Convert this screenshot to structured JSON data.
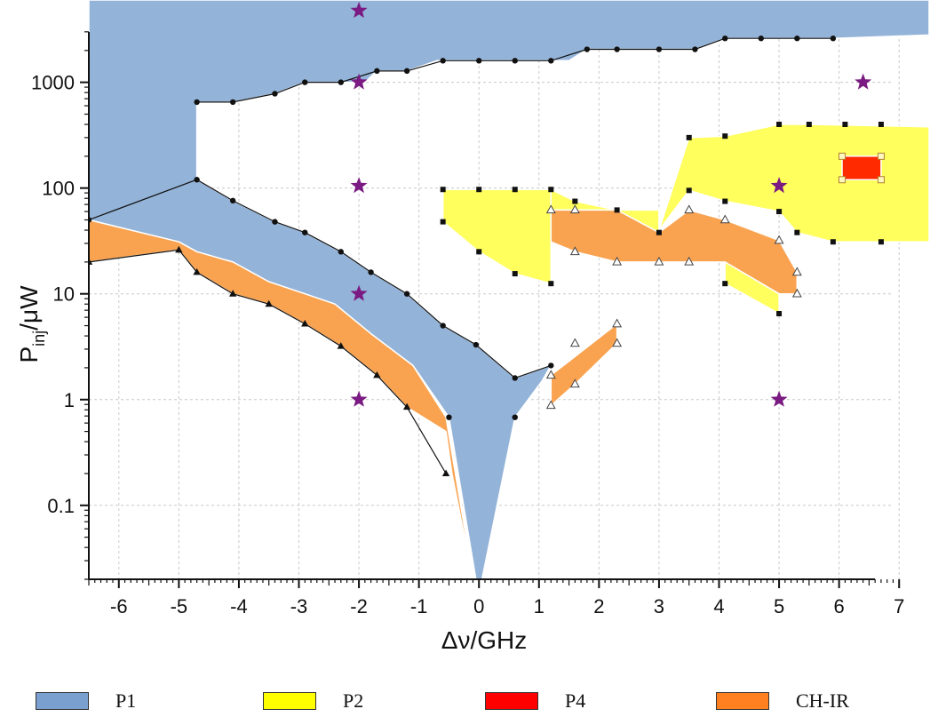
{
  "chart_data": {
    "type": "area",
    "title": "",
    "xlabel": "Δν/GHz",
    "ylabel_main": "P",
    "ylabel_sub": "inj",
    "ylabel_rest": "/μW",
    "x_range": [
      -6.5,
      7.5
    ],
    "y_range": [
      0.02,
      6000
    ],
    "y_scale": "log",
    "grid": true,
    "x_ticks": [
      -6,
      -5,
      -4,
      -3,
      -2,
      -1,
      0,
      1,
      2,
      3,
      4,
      5,
      6,
      7
    ],
    "x_tick_labels": [
      "-6",
      "-5",
      "-4",
      "-3",
      "-2",
      "-1",
      "0",
      "1",
      "2",
      "3",
      "4",
      "5",
      "6",
      "7"
    ],
    "y_ticks": [
      0.1,
      1,
      10,
      100,
      1000
    ],
    "y_tick_labels": [
      "0.1",
      "1",
      "10",
      "100",
      "1000"
    ],
    "legend_position": "bottom",
    "colors": {
      "P1": "#93b3d8",
      "P2": "#ffff5e",
      "P4": "#ff2a00",
      "CHIR": "#f9a350",
      "star": "#7a1a82"
    },
    "legend": [
      {
        "label": "P1",
        "color": "#7aa0d0"
      },
      {
        "label": "P2",
        "color": "#ffff00"
      },
      {
        "label": "P4",
        "color": "#ff0000"
      },
      {
        "label": "CH-IR",
        "color": "#ff8020"
      }
    ],
    "regions": [
      {
        "series": "P1",
        "boundary": [
          [
            -6.5,
            6000
          ],
          [
            7.5,
            6000
          ],
          [
            7.5,
            2800
          ],
          [
            5.9,
            2600
          ],
          [
            4.1,
            2600
          ],
          [
            3.6,
            2050
          ],
          [
            1.8,
            2050
          ],
          [
            1.5,
            1600
          ],
          [
            0.6,
            1600
          ],
          [
            -0.7,
            1600
          ],
          [
            -1.2,
            1280
          ],
          [
            -1.7,
            1280
          ],
          [
            -1.9,
            1000
          ],
          [
            -2.9,
            1000
          ],
          [
            -3.4,
            780
          ],
          [
            -4.1,
            650
          ],
          [
            -4.7,
            650
          ],
          [
            -4.7,
            120
          ],
          [
            -4.1,
            76
          ],
          [
            -3.4,
            48
          ],
          [
            -2.9,
            38
          ],
          [
            -2.3,
            25
          ],
          [
            -1.8,
            16
          ],
          [
            -1.2,
            10
          ],
          [
            -0.6,
            5
          ],
          [
            -0.05,
            3.3
          ],
          [
            0.6,
            1.6
          ],
          [
            1.2,
            2.1
          ],
          [
            1.05,
            1.5
          ],
          [
            0.6,
            0.68
          ],
          [
            0.05,
            0.02
          ],
          [
            -0.05,
            0.02
          ],
          [
            -0.5,
            0.68
          ],
          [
            -1.1,
            2.1
          ],
          [
            -1.8,
            4.2
          ],
          [
            -2.4,
            8
          ],
          [
            -2.9,
            10
          ],
          [
            -3.5,
            13
          ],
          [
            -4.1,
            20
          ],
          [
            -4.7,
            25
          ],
          [
            -5,
            31
          ],
          [
            -6.5,
            50
          ]
        ]
      },
      {
        "series": "CHIR",
        "boundary": [
          [
            -6.5,
            50
          ],
          [
            -5,
            31
          ],
          [
            -4.7,
            25
          ],
          [
            -4.1,
            20
          ],
          [
            -3.5,
            13
          ],
          [
            -2.9,
            10
          ],
          [
            -2.4,
            8
          ],
          [
            -1.8,
            4.2
          ],
          [
            -1.1,
            2.1
          ],
          [
            -0.55,
            0.68
          ],
          [
            -0.1,
            0.02
          ],
          [
            -0.45,
            0.2
          ],
          [
            -0.55,
            0.5
          ],
          [
            -1.2,
            0.85
          ],
          [
            -1.7,
            1.7
          ],
          [
            -2.3,
            3.2
          ],
          [
            -2.9,
            5.2
          ],
          [
            -3.5,
            8
          ],
          [
            -4.1,
            10
          ],
          [
            -4.7,
            16
          ],
          [
            -5,
            26
          ],
          [
            -6.5,
            20
          ]
        ]
      },
      {
        "series": "P2",
        "boundary": [
          [
            -0.6,
            97
          ],
          [
            1.2,
            97
          ],
          [
            1.2,
            12.5
          ],
          [
            0.6,
            15.5
          ],
          [
            0,
            25
          ],
          [
            -0.6,
            48
          ]
        ]
      },
      {
        "series": "P2",
        "boundary": [
          [
            1.2,
            97
          ],
          [
            1.6,
            75
          ],
          [
            2.3,
            62
          ],
          [
            3,
            62
          ],
          [
            3,
            38
          ],
          [
            2.3,
            62
          ],
          [
            1.2,
            62
          ]
        ]
      },
      {
        "series": "P2",
        "boundary": [
          [
            3,
            40
          ],
          [
            3.5,
            300
          ],
          [
            4.1,
            310
          ],
          [
            5,
            400
          ],
          [
            5.5,
            400
          ],
          [
            7.5,
            380
          ],
          [
            7.5,
            31
          ],
          [
            6.7,
            31
          ],
          [
            5.9,
            31
          ],
          [
            5.3,
            38
          ],
          [
            5,
            60
          ],
          [
            4.1,
            75
          ],
          [
            3.5,
            95
          ]
        ]
      },
      {
        "series": "P2",
        "boundary": [
          [
            4.1,
            20
          ],
          [
            5,
            10
          ],
          [
            5,
            6.5
          ],
          [
            4.1,
            12.5
          ]
        ]
      },
      {
        "series": "P4",
        "boundary": [
          [
            6.05,
            200
          ],
          [
            6.7,
            200
          ],
          [
            6.7,
            120
          ],
          [
            6.05,
            120
          ]
        ]
      },
      {
        "series": "CHIR",
        "boundary": [
          [
            1.2,
            62
          ],
          [
            2.3,
            62
          ],
          [
            3,
            38
          ],
          [
            3.5,
            62
          ],
          [
            4.1,
            50
          ],
          [
            5,
            32
          ],
          [
            5.3,
            16
          ],
          [
            5.3,
            10
          ],
          [
            5,
            10
          ],
          [
            4.1,
            20
          ],
          [
            3.5,
            20
          ],
          [
            3,
            20
          ],
          [
            2.3,
            20
          ],
          [
            1.6,
            25
          ],
          [
            1.2,
            31
          ]
        ]
      },
      {
        "series": "CHIR",
        "boundary": [
          [
            1.2,
            1.7
          ],
          [
            2.3,
            5.2
          ],
          [
            2.3,
            3.4
          ],
          [
            1.6,
            1.4
          ],
          [
            1.2,
            0.88
          ]
        ]
      }
    ],
    "boundary_series": [
      {
        "name": "P1-upper",
        "marker": "circle",
        "points": [
          [
            -4.7,
            650
          ],
          [
            -4.1,
            650
          ],
          [
            -3.4,
            780
          ],
          [
            -2.9,
            1000
          ],
          [
            -2.3,
            1000
          ],
          [
            -1.7,
            1280
          ],
          [
            -1.2,
            1280
          ],
          [
            -0.6,
            1600
          ],
          [
            0,
            1600
          ],
          [
            0.6,
            1600
          ],
          [
            1.2,
            1600
          ],
          [
            1.8,
            2050
          ],
          [
            2.3,
            2050
          ],
          [
            3,
            2050
          ],
          [
            3.6,
            2050
          ],
          [
            4.1,
            2600
          ],
          [
            4.7,
            2600
          ],
          [
            5.3,
            2600
          ],
          [
            5.9,
            2600
          ]
        ]
      },
      {
        "name": "P1-lower",
        "marker": "circle",
        "points": [
          [
            -6.5,
            50
          ],
          [
            -4.7,
            120
          ],
          [
            -4.1,
            76
          ],
          [
            -3.4,
            48
          ],
          [
            -2.9,
            38
          ],
          [
            -2.3,
            25
          ],
          [
            -1.8,
            16
          ],
          [
            -1.2,
            10
          ],
          [
            -0.6,
            5
          ],
          [
            -0.05,
            3.3
          ],
          [
            0.6,
            1.6
          ],
          [
            1.2,
            2.1
          ]
        ]
      },
      {
        "name": "P1-tail",
        "marker": "circle",
        "points": [
          [
            -0.5,
            0.68
          ],
          [
            0.6,
            0.68
          ]
        ]
      },
      {
        "name": "CHIR-lower",
        "marker": "triangle",
        "points": [
          [
            -6.5,
            20
          ],
          [
            -5,
            26
          ],
          [
            -4.7,
            16
          ],
          [
            -4.1,
            10
          ],
          [
            -3.5,
            8
          ],
          [
            -2.9,
            5.2
          ],
          [
            -2.3,
            3.2
          ],
          [
            -1.7,
            1.7
          ],
          [
            -1.2,
            0.85
          ],
          [
            -0.55,
            0.2
          ]
        ]
      },
      {
        "name": "P2-mid",
        "marker": "square",
        "points": [
          [
            -0.6,
            97
          ],
          [
            0,
            97
          ],
          [
            0.6,
            97
          ],
          [
            1.2,
            97
          ],
          [
            1.6,
            75
          ],
          [
            2.3,
            62
          ],
          [
            -0.6,
            48
          ],
          [
            0,
            25
          ],
          [
            0.6,
            15.5
          ],
          [
            1.2,
            12.5
          ],
          [
            3,
            38
          ]
        ]
      },
      {
        "name": "P2-right",
        "marker": "square",
        "points": [
          [
            3.5,
            300
          ],
          [
            4.1,
            310
          ],
          [
            5,
            400
          ],
          [
            5.5,
            400
          ],
          [
            6.1,
            400
          ],
          [
            6.7,
            400
          ],
          [
            3.5,
            95
          ],
          [
            4.1,
            75
          ],
          [
            5,
            60
          ],
          [
            5.3,
            38
          ],
          [
            5.9,
            31
          ],
          [
            6.7,
            31
          ],
          [
            4.1,
            12.5
          ],
          [
            5,
            6.5
          ]
        ]
      },
      {
        "name": "CHIR-open",
        "marker": "open-triangle",
        "points": [
          [
            1.2,
            62
          ],
          [
            1.6,
            62
          ],
          [
            3.5,
            62
          ],
          [
            4.1,
            50
          ],
          [
            5,
            32
          ],
          [
            5.3,
            16
          ],
          [
            5.3,
            10
          ],
          [
            1.6,
            25
          ],
          [
            2.3,
            20
          ],
          [
            3,
            20
          ],
          [
            3.5,
            20
          ],
          [
            1.2,
            1.7
          ],
          [
            1.2,
            0.88
          ],
          [
            1.6,
            1.4
          ],
          [
            1.6,
            3.4
          ],
          [
            2.3,
            5.2
          ],
          [
            2.3,
            3.4
          ]
        ]
      },
      {
        "name": "P4-corners",
        "marker": "open-square",
        "points": [
          [
            6.05,
            200
          ],
          [
            6.7,
            200
          ],
          [
            6.05,
            120
          ],
          [
            6.7,
            120
          ]
        ]
      }
    ],
    "stars": [
      [
        -2,
        5000
      ],
      [
        -2,
        1000
      ],
      [
        6.4,
        1000
      ],
      [
        -2,
        105
      ],
      [
        5,
        105
      ],
      [
        -2,
        10
      ],
      [
        -2,
        1
      ],
      [
        5,
        1
      ]
    ]
  }
}
